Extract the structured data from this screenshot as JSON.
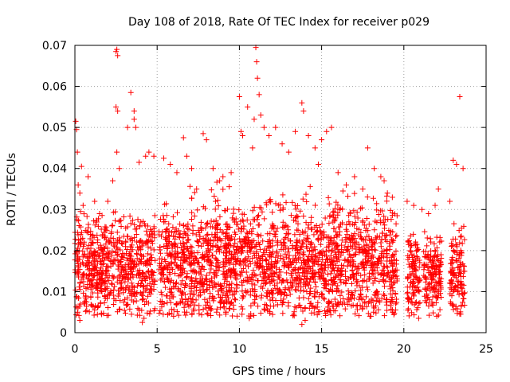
{
  "chart_data": {
    "type": "scatter",
    "title": "Day 108 of 2018, Rate Of TEC Index for receiver p029",
    "xlabel": "GPS time / hours",
    "ylabel": "ROTI / TECUs",
    "xlim": [
      0,
      25
    ],
    "ylim": [
      0,
      0.07
    ],
    "x_ticks": [
      "0",
      "5",
      "10",
      "15",
      "20",
      "25"
    ],
    "y_ticks": [
      "0",
      "0.01",
      "0.02",
      "0.03",
      "0.04",
      "0.05",
      "0.06",
      "0.07"
    ],
    "grid": true,
    "marker": "plus",
    "color": "#ff0000",
    "series": [
      {
        "points": [
          [
            0.05,
            0.0515
          ],
          [
            0.1,
            0.0495
          ],
          [
            0.15,
            0.044
          ],
          [
            0.2,
            0.036
          ],
          [
            0.3,
            0.034
          ],
          [
            0.4,
            0.0405
          ],
          [
            0.5,
            0.031
          ],
          [
            0.8,
            0.038
          ],
          [
            1.2,
            0.032
          ],
          [
            1.5,
            0.029
          ],
          [
            2.0,
            0.032
          ],
          [
            2.3,
            0.037
          ],
          [
            2.5,
            0.0685
          ],
          [
            2.55,
            0.069
          ],
          [
            2.6,
            0.0675
          ],
          [
            2.5,
            0.055
          ],
          [
            2.6,
            0.054
          ],
          [
            2.55,
            0.044
          ],
          [
            2.7,
            0.04
          ],
          [
            3.2,
            0.05
          ],
          [
            3.4,
            0.0585
          ],
          [
            3.6,
            0.052
          ],
          [
            3.6,
            0.054
          ],
          [
            3.7,
            0.05
          ],
          [
            3.9,
            0.0415
          ],
          [
            4.3,
            0.043
          ],
          [
            4.5,
            0.044
          ],
          [
            4.8,
            0.043
          ],
          [
            5.4,
            0.0425
          ],
          [
            5.8,
            0.041
          ],
          [
            6.2,
            0.039
          ],
          [
            6.6,
            0.0475
          ],
          [
            6.8,
            0.043
          ],
          [
            7.1,
            0.04
          ],
          [
            7.4,
            0.035
          ],
          [
            7.8,
            0.0485
          ],
          [
            8.0,
            0.047
          ],
          [
            8.4,
            0.04
          ],
          [
            8.8,
            0.037
          ],
          [
            9.0,
            0.038
          ],
          [
            9.5,
            0.039
          ],
          [
            10.0,
            0.0575
          ],
          [
            10.1,
            0.049
          ],
          [
            10.2,
            0.048
          ],
          [
            10.5,
            0.055
          ],
          [
            10.8,
            0.045
          ],
          [
            10.9,
            0.052
          ],
          [
            11.0,
            0.0695
          ],
          [
            11.05,
            0.066
          ],
          [
            11.1,
            0.062
          ],
          [
            11.2,
            0.058
          ],
          [
            11.3,
            0.053
          ],
          [
            11.5,
            0.05
          ],
          [
            11.8,
            0.048
          ],
          [
            12.2,
            0.05
          ],
          [
            12.6,
            0.046
          ],
          [
            13.0,
            0.044
          ],
          [
            13.4,
            0.049
          ],
          [
            13.8,
            0.056
          ],
          [
            13.9,
            0.054
          ],
          [
            14.2,
            0.048
          ],
          [
            14.6,
            0.045
          ],
          [
            14.8,
            0.041
          ],
          [
            15.0,
            0.047
          ],
          [
            15.3,
            0.049
          ],
          [
            15.6,
            0.05
          ],
          [
            16.0,
            0.039
          ],
          [
            16.5,
            0.036
          ],
          [
            17.0,
            0.038
          ],
          [
            17.5,
            0.035
          ],
          [
            17.8,
            0.045
          ],
          [
            18.2,
            0.04
          ],
          [
            18.6,
            0.038
          ],
          [
            18.8,
            0.037
          ],
          [
            19.0,
            0.034
          ],
          [
            19.3,
            0.033
          ],
          [
            20.2,
            0.032
          ],
          [
            20.6,
            0.031
          ],
          [
            21.1,
            0.03
          ],
          [
            21.5,
            0.029
          ],
          [
            21.9,
            0.031
          ],
          [
            22.1,
            0.035
          ],
          [
            22.8,
            0.032
          ],
          [
            23.0,
            0.042
          ],
          [
            23.2,
            0.041
          ],
          [
            23.4,
            0.0575
          ],
          [
            23.6,
            0.04
          ],
          [
            0.3,
            0.003
          ],
          [
            4.1,
            0.0025
          ],
          [
            4.2,
            0.0035
          ],
          [
            13.8,
            0.002
          ],
          [
            14.0,
            0.003
          ],
          [
            6.0,
            0.004
          ],
          [
            22.0,
            0.004
          ],
          [
            20.9,
            0.0035
          ],
          [
            18.0,
            0.004
          ],
          [
            10.6,
            0.0035
          ]
        ]
      }
    ]
  }
}
